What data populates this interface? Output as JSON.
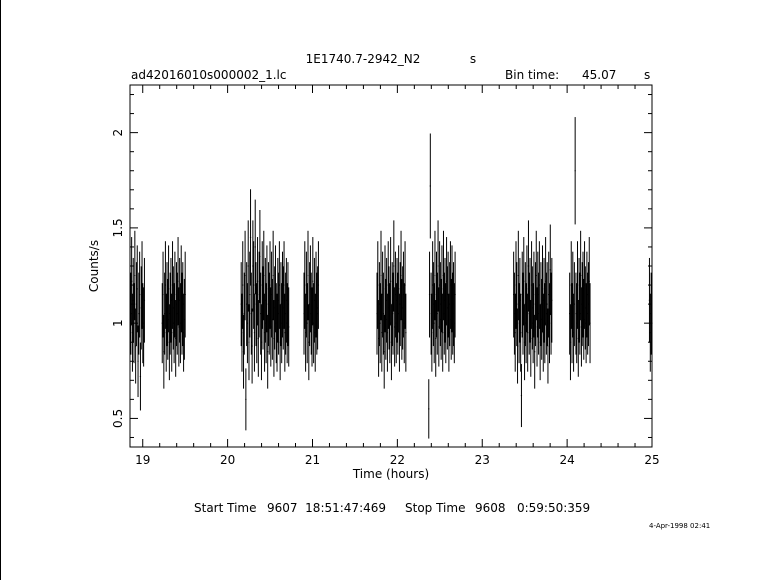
{
  "header": {
    "title": "1E1740.7-2942_N2",
    "title_suffix": "s",
    "file_name": "ad42016010s000002_1.lc",
    "bin_label": "Bin time:",
    "bin_value": "45.07",
    "bin_unit": "s"
  },
  "footer": {
    "start_label": "Start Time",
    "start_value": "9607  18:51:47:469",
    "stop_label": "Stop Time",
    "stop_value": "9608   0:59:50:359",
    "stamp": "4-Apr-1998 02:41"
  },
  "chart_data": {
    "type": "scatter",
    "title": "1E1740.7-2942_N2",
    "xlabel": "Time (hours)",
    "ylabel": "Counts/s",
    "xlim": [
      18.85,
      25.0
    ],
    "ylim": [
      0.35,
      2.25
    ],
    "x_ticks": [
      19,
      20,
      21,
      22,
      23,
      24,
      25
    ],
    "y_ticks": [
      0.5,
      1,
      1.5,
      2
    ],
    "grid": false,
    "legend": "none",
    "color": "#000000",
    "series": [
      {
        "segments": [
          {
            "x0": 18.86,
            "x1": 19.02,
            "y": [
              1.05,
              1.22,
              0.95,
              1.12,
              1.0,
              1.25,
              0.88,
              1.1,
              1.18,
              0.8,
              1.05,
              1.15,
              0.72,
              1.08,
              1.2,
              1.0,
              0.98,
              1.12
            ]
          },
          {
            "x0": 19.23,
            "x1": 19.5,
            "y": [
              1.0,
              1.15,
              0.85,
              1.05,
              1.2,
              0.95,
              1.1,
              1.02,
              1.18,
              0.9,
              1.05,
              1.12,
              0.95,
              1.2,
              1.08,
              1.0,
              1.15,
              0.92,
              1.1,
              1.05,
              1.22,
              0.98,
              1.12,
              1.0,
              1.18,
              1.05,
              1.1,
              0.95,
              1.02,
              1.15
            ]
          },
          {
            "x0": 20.16,
            "x1": 20.72,
            "y": [
              1.1,
              0.95,
              1.2,
              0.85,
              1.05,
              1.25,
              0.6,
              1.1,
              1.0,
              1.3,
              0.9,
              1.15,
              1.45,
              1.05,
              0.88,
              1.3,
              1.2,
              0.95,
              1.4,
              1.1,
              1.0,
              1.22,
              0.92,
              1.15,
              1.35,
              1.05,
              0.9,
              1.2,
              1.08,
              1.25,
              0.95,
              1.12,
              1.0,
              1.18,
              0.85,
              1.1,
              1.05,
              1.2,
              0.98,
              1.15,
              1.02,
              1.25,
              0.92,
              1.08,
              1.18,
              1.0,
              0.95,
              1.12,
              1.05,
              1.2,
              0.9,
              1.1,
              1.0,
              1.15,
              1.08,
              1.2,
              0.95,
              1.05,
              1.12,
              1.0,
              1.1,
              0.98
            ]
          },
          {
            "x0": 20.9,
            "x1": 21.07,
            "y": [
              1.05,
              1.2,
              0.95,
              1.15,
              1.0,
              1.25,
              0.9,
              1.1,
              1.18,
              1.05,
              0.98,
              1.22,
              1.0,
              1.12,
              0.95,
              1.15,
              1.05,
              1.08,
              1.2
            ]
          },
          {
            "x0": 21.76,
            "x1": 22.1,
            "y": [
              1.05,
              1.2,
              0.92,
              1.1,
              1.0,
              1.25,
              0.95,
              1.15,
              1.05,
              0.85,
              1.18,
              1.02,
              1.12,
              0.95,
              1.2,
              1.08,
              1.0,
              1.22,
              0.9,
              1.1,
              1.05,
              1.3,
              0.98,
              1.15,
              1.0,
              1.12,
              1.05,
              1.18,
              0.95,
              1.1,
              1.25,
              1.02,
              1.08,
              1.15,
              1.0,
              1.2,
              0.95
            ]
          },
          {
            "x0": 22.37,
            "x1": 22.68,
            "y": [
              0.55,
              1.15,
              1.72,
              1.05,
              0.95,
              1.2,
              1.1,
              1.0,
              1.25,
              0.92,
              1.15,
              1.05,
              1.3,
              0.98,
              1.2,
              1.1,
              1.02,
              1.18,
              0.95,
              1.25,
              1.05,
              1.12,
              1.0,
              1.22,
              1.08,
              1.15,
              0.95,
              1.1,
              1.2,
              1.02,
              1.18,
              1.05,
              1.1,
              1.0,
              1.15
            ]
          },
          {
            "x0": 23.37,
            "x1": 23.82,
            "y": [
              1.15,
              1.05,
              0.95,
              1.2,
              1.1,
              0.88,
              1.25,
              1.0,
              1.12,
              0.95,
              0.62,
              1.15,
              1.05,
              1.22,
              0.9,
              1.1,
              1.0,
              1.18,
              0.95,
              1.3,
              1.05,
              1.12,
              0.92,
              1.2,
              1.08,
              1.0,
              1.15,
              0.85,
              1.1,
              1.25,
              0.98,
              1.15,
              1.05,
              1.2,
              0.9,
              1.1,
              1.02,
              1.18,
              0.95,
              1.12,
              1.0,
              1.22,
              1.05,
              1.1,
              0.88,
              1.15,
              1.0,
              1.28,
              1.05,
              1.12
            ]
          },
          {
            "x0": 24.03,
            "x1": 24.27,
            "y": [
              1.05,
              0.9,
              1.2,
              1.0,
              1.15,
              0.95,
              1.1,
              1.8,
              1.05,
              1.0,
              1.2,
              0.92,
              1.12,
              1.05,
              1.25,
              0.98,
              1.1,
              1.15,
              1.02,
              1.2,
              1.08,
              1.0,
              1.15,
              1.05,
              1.1,
              1.22,
              1.0
            ]
          },
          {
            "x0": 24.97,
            "x1": 25.0,
            "y": [
              1.12,
              0.95,
              1.05,
              1.0
            ]
          }
        ]
      }
    ]
  }
}
